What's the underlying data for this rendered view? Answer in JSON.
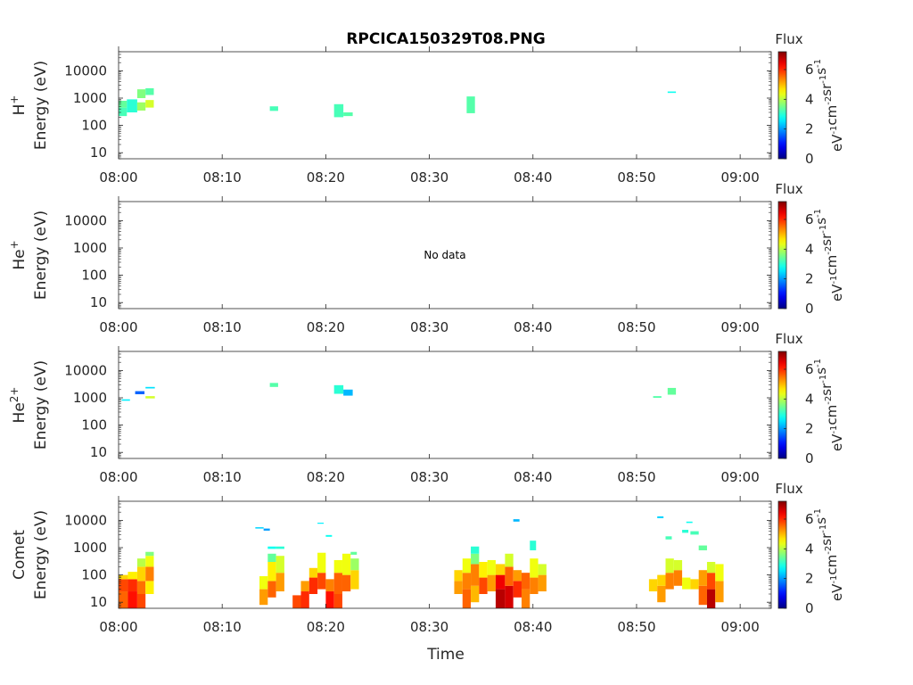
{
  "figure": {
    "title": "RPCICA150329T08.PNG",
    "xlabel": "Time",
    "x_ticks": [
      "08:00",
      "08:10",
      "08:20",
      "08:30",
      "08:40",
      "08:50",
      "09:00"
    ],
    "y_ticks": [
      "10",
      "100",
      "1000",
      "10000"
    ],
    "colorbar": {
      "title": "Flux",
      "label": "eV-1cm-2sr-1s-1",
      "ticks": [
        "0",
        "2",
        "4",
        "6"
      ],
      "range": [
        0,
        7.2
      ],
      "colormap": "jet"
    }
  },
  "chart_data": [
    {
      "type": "heatmap",
      "ylabel_species": "H+",
      "ylabel_unit": "Energy (eV)",
      "x_range": [
        "08:00",
        "09:03"
      ],
      "y_scale": "log",
      "ylim": [
        6,
        50000
      ],
      "no_data": false,
      "cells": [
        {
          "t": 0.0,
          "dt": 0.8,
          "e": [
            220,
            450
          ],
          "v": 3.2
        },
        {
          "t": 0.0,
          "dt": 0.8,
          "e": [
            450,
            800
          ],
          "v": 3.4
        },
        {
          "t": 0.8,
          "dt": 1.0,
          "e": [
            300,
            900
          ],
          "v": 3.0
        },
        {
          "t": 1.8,
          "dt": 0.8,
          "e": [
            350,
            700
          ],
          "v": 3.8
        },
        {
          "t": 1.8,
          "dt": 0.8,
          "e": [
            1000,
            2100
          ],
          "v": 3.6
        },
        {
          "t": 2.6,
          "dt": 0.8,
          "e": [
            450,
            850
          ],
          "v": 4.2
        },
        {
          "t": 2.6,
          "dt": 0.8,
          "e": [
            1300,
            2300
          ],
          "v": 3.3
        },
        {
          "t": 14.6,
          "dt": 0.8,
          "e": [
            340,
            500
          ],
          "v": 3.2
        },
        {
          "t": 20.8,
          "dt": 0.9,
          "e": [
            200,
            600
          ],
          "v": 3.2
        },
        {
          "t": 21.7,
          "dt": 0.9,
          "e": [
            220,
            300
          ],
          "v": 3.3
        },
        {
          "t": 33.6,
          "dt": 0.8,
          "e": [
            280,
            1150
          ],
          "v": 3.3
        },
        {
          "t": 53.0,
          "dt": 0.8,
          "e": [
            1550,
            1750
          ],
          "v": 2.8
        }
      ]
    },
    {
      "type": "heatmap",
      "ylabel_species": "He+",
      "ylabel_unit": "Energy (eV)",
      "x_range": [
        "08:00",
        "09:03"
      ],
      "y_scale": "log",
      "ylim": [
        6,
        50000
      ],
      "no_data": true,
      "no_data_text": "No data",
      "cells": []
    },
    {
      "type": "heatmap",
      "ylabel_species": "He2+",
      "ylabel_unit": "Energy (eV)",
      "x_range": [
        "08:00",
        "09:03"
      ],
      "y_scale": "log",
      "ylim": [
        6,
        50000
      ],
      "no_data": false,
      "cells": [
        {
          "t": 0.3,
          "dt": 0.8,
          "e": [
            780,
            880
          ],
          "v": 2.6
        },
        {
          "t": 1.6,
          "dt": 0.9,
          "e": [
            1350,
            1750
          ],
          "v": 1.6
        },
        {
          "t": 2.6,
          "dt": 0.9,
          "e": [
            950,
            1150
          ],
          "v": 4.2
        },
        {
          "t": 2.6,
          "dt": 0.9,
          "e": [
            2200,
            2500
          ],
          "v": 2.5
        },
        {
          "t": 14.6,
          "dt": 0.8,
          "e": [
            2500,
            3500
          ],
          "v": 3.3
        },
        {
          "t": 20.8,
          "dt": 0.9,
          "e": [
            1400,
            2900
          ],
          "v": 3.0
        },
        {
          "t": 21.7,
          "dt": 0.9,
          "e": [
            1200,
            2000
          ],
          "v": 2.2
        },
        {
          "t": 51.6,
          "dt": 0.8,
          "e": [
            1000,
            1150
          ],
          "v": 3.3
        },
        {
          "t": 53.0,
          "dt": 0.8,
          "e": [
            1300,
            2300
          ],
          "v": 3.4
        }
      ]
    },
    {
      "type": "heatmap",
      "ylabel_species": "Comet",
      "ylabel_unit": "Energy (eV)",
      "x_range": [
        "08:00",
        "09:03"
      ],
      "y_scale": "log",
      "ylim": [
        6,
        50000
      ],
      "no_data": false,
      "cells": [
        {
          "t": 0.0,
          "dt": 0.9,
          "e": [
            6,
            25
          ],
          "v": 5.6
        },
        {
          "t": 0.0,
          "dt": 0.9,
          "e": [
            25,
            70
          ],
          "v": 5.8
        },
        {
          "t": 0.0,
          "dt": 0.9,
          "e": [
            70,
            100
          ],
          "v": 4.8
        },
        {
          "t": 0.9,
          "dt": 0.9,
          "e": [
            6,
            25
          ],
          "v": 6.2
        },
        {
          "t": 0.9,
          "dt": 0.9,
          "e": [
            25,
            70
          ],
          "v": 6.0
        },
        {
          "t": 0.9,
          "dt": 0.9,
          "e": [
            70,
            130
          ],
          "v": 4.6
        },
        {
          "t": 1.8,
          "dt": 0.8,
          "e": [
            6,
            20
          ],
          "v": 5.8
        },
        {
          "t": 1.8,
          "dt": 0.8,
          "e": [
            20,
            60
          ],
          "v": 5.5
        },
        {
          "t": 1.8,
          "dt": 0.8,
          "e": [
            60,
            200
          ],
          "v": 4.8
        },
        {
          "t": 1.8,
          "dt": 0.8,
          "e": [
            200,
            400
          ],
          "v": 4.0
        },
        {
          "t": 2.6,
          "dt": 0.8,
          "e": [
            20,
            60
          ],
          "v": 4.6
        },
        {
          "t": 2.6,
          "dt": 0.8,
          "e": [
            60,
            200
          ],
          "v": 5.4
        },
        {
          "t": 2.6,
          "dt": 0.8,
          "e": [
            200,
            500
          ],
          "v": 4.4
        },
        {
          "t": 2.6,
          "dt": 0.8,
          "e": [
            500,
            700
          ],
          "v": 3.6
        },
        {
          "t": 13.2,
          "dt": 0.8,
          "e": [
            5000,
            5600
          ],
          "v": 2.4
        },
        {
          "t": 14.0,
          "dt": 0.6,
          "e": [
            4200,
            5000
          ],
          "v": 2.0
        },
        {
          "t": 13.6,
          "dt": 0.8,
          "e": [
            30,
            90
          ],
          "v": 4.4
        },
        {
          "t": 13.6,
          "dt": 0.8,
          "e": [
            8,
            30
          ],
          "v": 5.2
        },
        {
          "t": 14.4,
          "dt": 0.8,
          "e": [
            15,
            60
          ],
          "v": 5.6
        },
        {
          "t": 14.4,
          "dt": 0.8,
          "e": [
            60,
            300
          ],
          "v": 4.6
        },
        {
          "t": 14.4,
          "dt": 0.8,
          "e": [
            300,
            600
          ],
          "v": 3.4
        },
        {
          "t": 14.4,
          "dt": 0.8,
          "e": [
            900,
            1100
          ],
          "v": 2.8
        },
        {
          "t": 15.2,
          "dt": 0.8,
          "e": [
            25,
            120
          ],
          "v": 5.2
        },
        {
          "t": 15.2,
          "dt": 0.8,
          "e": [
            120,
            500
          ],
          "v": 4.2
        },
        {
          "t": 15.2,
          "dt": 0.8,
          "e": [
            900,
            1100
          ],
          "v": 3.0
        },
        {
          "t": 16.8,
          "dt": 0.8,
          "e": [
            6,
            18
          ],
          "v": 5.8
        },
        {
          "t": 17.6,
          "dt": 0.8,
          "e": [
            6,
            25
          ],
          "v": 6.0
        },
        {
          "t": 17.6,
          "dt": 0.8,
          "e": [
            25,
            60
          ],
          "v": 5.2
        },
        {
          "t": 18.4,
          "dt": 0.8,
          "e": [
            20,
            80
          ],
          "v": 6.0
        },
        {
          "t": 18.4,
          "dt": 0.8,
          "e": [
            80,
            180
          ],
          "v": 4.8
        },
        {
          "t": 19.2,
          "dt": 0.8,
          "e": [
            30,
            120
          ],
          "v": 5.8
        },
        {
          "t": 19.2,
          "dt": 0.8,
          "e": [
            120,
            650
          ],
          "v": 4.4
        },
        {
          "t": 19.2,
          "dt": 0.6,
          "e": [
            7500,
            8200
          ],
          "v": 2.6
        },
        {
          "t": 20.0,
          "dt": 0.6,
          "e": [
            2500,
            2900
          ],
          "v": 2.8
        },
        {
          "t": 20.0,
          "dt": 0.8,
          "e": [
            6,
            25
          ],
          "v": 6.2
        },
        {
          "t": 20.0,
          "dt": 0.8,
          "e": [
            25,
            70
          ],
          "v": 5.4
        },
        {
          "t": 20.8,
          "dt": 0.8,
          "e": [
            6,
            20
          ],
          "v": 5.8
        },
        {
          "t": 20.8,
          "dt": 0.8,
          "e": [
            20,
            120
          ],
          "v": 5.6
        },
        {
          "t": 20.8,
          "dt": 0.8,
          "e": [
            120,
            350
          ],
          "v": 4.4
        },
        {
          "t": 21.6,
          "dt": 0.8,
          "e": [
            25,
            100
          ],
          "v": 5.6
        },
        {
          "t": 21.6,
          "dt": 0.8,
          "e": [
            100,
            600
          ],
          "v": 4.4
        },
        {
          "t": 22.4,
          "dt": 0.8,
          "e": [
            30,
            150
          ],
          "v": 4.8
        },
        {
          "t": 22.4,
          "dt": 0.8,
          "e": [
            150,
            400
          ],
          "v": 3.8
        },
        {
          "t": 22.4,
          "dt": 0.6,
          "e": [
            550,
            700
          ],
          "v": 3.4
        },
        {
          "t": 32.4,
          "dt": 0.8,
          "e": [
            20,
            60
          ],
          "v": 5.2
        },
        {
          "t": 32.4,
          "dt": 0.8,
          "e": [
            60,
            150
          ],
          "v": 4.8
        },
        {
          "t": 33.2,
          "dt": 0.8,
          "e": [
            6,
            30
          ],
          "v": 5.6
        },
        {
          "t": 33.2,
          "dt": 0.8,
          "e": [
            30,
            120
          ],
          "v": 5.4
        },
        {
          "t": 33.2,
          "dt": 0.8,
          "e": [
            120,
            400
          ],
          "v": 4.4
        },
        {
          "t": 34.0,
          "dt": 0.8,
          "e": [
            10,
            40
          ],
          "v": 5.0
        },
        {
          "t": 34.0,
          "dt": 0.8,
          "e": [
            40,
            250
          ],
          "v": 5.4
        },
        {
          "t": 34.0,
          "dt": 0.8,
          "e": [
            250,
            600
          ],
          "v": 3.6
        },
        {
          "t": 34.0,
          "dt": 0.8,
          "e": [
            600,
            1100
          ],
          "v": 3.0
        },
        {
          "t": 34.8,
          "dt": 0.8,
          "e": [
            20,
            80
          ],
          "v": 5.8
        },
        {
          "t": 34.8,
          "dt": 0.8,
          "e": [
            80,
            300
          ],
          "v": 4.6
        },
        {
          "t": 35.6,
          "dt": 0.8,
          "e": [
            25,
            100
          ],
          "v": 5.2
        },
        {
          "t": 35.6,
          "dt": 0.8,
          "e": [
            100,
            350
          ],
          "v": 4.4
        },
        {
          "t": 36.4,
          "dt": 0.9,
          "e": [
            6,
            30
          ],
          "v": 6.8
        },
        {
          "t": 36.4,
          "dt": 0.9,
          "e": [
            30,
            100
          ],
          "v": 6.4
        },
        {
          "t": 36.4,
          "dt": 0.9,
          "e": [
            100,
            250
          ],
          "v": 4.8
        },
        {
          "t": 37.3,
          "dt": 0.8,
          "e": [
            6,
            40
          ],
          "v": 6.6
        },
        {
          "t": 37.3,
          "dt": 0.8,
          "e": [
            40,
            200
          ],
          "v": 5.6
        },
        {
          "t": 37.3,
          "dt": 0.8,
          "e": [
            200,
            600
          ],
          "v": 4.2
        },
        {
          "t": 38.1,
          "dt": 0.8,
          "e": [
            15,
            60
          ],
          "v": 6.0
        },
        {
          "t": 38.1,
          "dt": 0.8,
          "e": [
            60,
            150
          ],
          "v": 5.2
        },
        {
          "t": 38.1,
          "dt": 0.6,
          "e": [
            9000,
            11000
          ],
          "v": 2.2
        },
        {
          "t": 38.9,
          "dt": 0.8,
          "e": [
            6,
            30
          ],
          "v": 5.4
        },
        {
          "t": 38.9,
          "dt": 0.8,
          "e": [
            30,
            120
          ],
          "v": 5.6
        },
        {
          "t": 39.7,
          "dt": 0.8,
          "e": [
            20,
            80
          ],
          "v": 5.4
        },
        {
          "t": 39.7,
          "dt": 0.8,
          "e": [
            80,
            400
          ],
          "v": 4.4
        },
        {
          "t": 39.7,
          "dt": 0.6,
          "e": [
            800,
            1800
          ],
          "v": 3.0
        },
        {
          "t": 40.5,
          "dt": 0.8,
          "e": [
            25,
            100
          ],
          "v": 5.2
        },
        {
          "t": 40.5,
          "dt": 0.8,
          "e": [
            100,
            250
          ],
          "v": 4.2
        },
        {
          "t": 51.2,
          "dt": 0.8,
          "e": [
            25,
            70
          ],
          "v": 4.8
        },
        {
          "t": 52.0,
          "dt": 0.8,
          "e": [
            10,
            40
          ],
          "v": 5.2
        },
        {
          "t": 52.0,
          "dt": 0.8,
          "e": [
            40,
            100
          ],
          "v": 4.8
        },
        {
          "t": 52.0,
          "dt": 0.6,
          "e": [
            12000,
            14000
          ],
          "v": 2.4
        },
        {
          "t": 52.8,
          "dt": 0.8,
          "e": [
            30,
            120
          ],
          "v": 5.4
        },
        {
          "t": 52.8,
          "dt": 0.8,
          "e": [
            120,
            400
          ],
          "v": 4.2
        },
        {
          "t": 52.8,
          "dt": 0.6,
          "e": [
            2000,
            2600
          ],
          "v": 3.2
        },
        {
          "t": 53.6,
          "dt": 0.8,
          "e": [
            40,
            150
          ],
          "v": 5.4
        },
        {
          "t": 53.6,
          "dt": 0.8,
          "e": [
            150,
            350
          ],
          "v": 4.2
        },
        {
          "t": 54.4,
          "dt": 0.8,
          "e": [
            30,
            80
          ],
          "v": 4.4
        },
        {
          "t": 54.4,
          "dt": 0.6,
          "e": [
            3500,
            4500
          ],
          "v": 3.0
        },
        {
          "t": 54.8,
          "dt": 0.6,
          "e": [
            8000,
            9000
          ],
          "v": 2.8
        },
        {
          "t": 55.2,
          "dt": 0.8,
          "e": [
            30,
            70
          ],
          "v": 4.8
        },
        {
          "t": 55.2,
          "dt": 0.8,
          "e": [
            3000,
            4000
          ],
          "v": 3.2
        },
        {
          "t": 56.0,
          "dt": 0.8,
          "e": [
            8,
            40
          ],
          "v": 5.6
        },
        {
          "t": 56.0,
          "dt": 0.8,
          "e": [
            40,
            150
          ],
          "v": 5.2
        },
        {
          "t": 56.0,
          "dt": 0.8,
          "e": [
            800,
            1200
          ],
          "v": 3.4
        },
        {
          "t": 56.8,
          "dt": 0.8,
          "e": [
            6,
            30
          ],
          "v": 6.8
        },
        {
          "t": 56.8,
          "dt": 0.8,
          "e": [
            30,
            120
          ],
          "v": 5.8
        },
        {
          "t": 56.8,
          "dt": 0.8,
          "e": [
            120,
            300
          ],
          "v": 4.2
        },
        {
          "t": 57.6,
          "dt": 0.8,
          "e": [
            10,
            60
          ],
          "v": 5.2
        },
        {
          "t": 57.6,
          "dt": 0.8,
          "e": [
            60,
            250
          ],
          "v": 4.4
        }
      ]
    }
  ]
}
